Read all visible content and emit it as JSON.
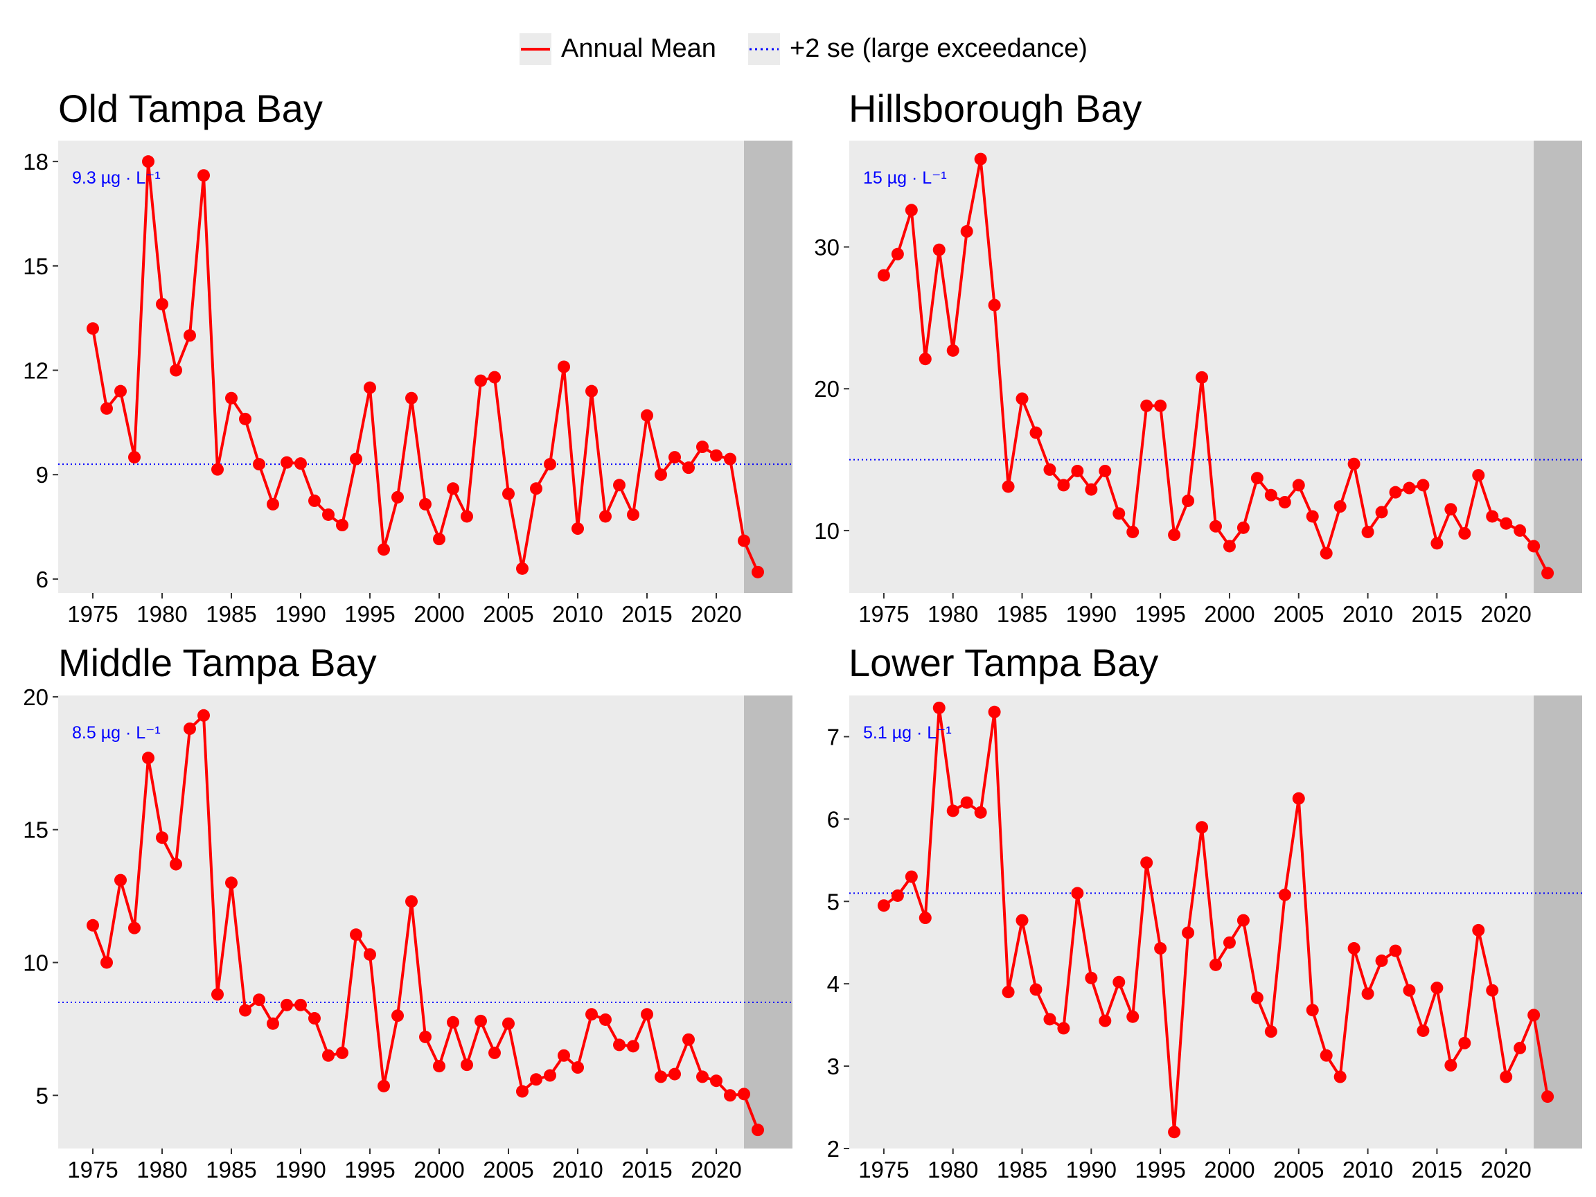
{
  "legend": {
    "items": [
      {
        "label": "Annual Mean",
        "color": "#ff0000",
        "style": "solid-with-point"
      },
      {
        "label": "+2 se (large exceedance)",
        "color": "#0000ff",
        "style": "dotted"
      }
    ],
    "position": "top"
  },
  "chart_data": [
    {
      "type": "line",
      "title": "Old Tampa Bay",
      "xlabel": "",
      "ylabel": "",
      "x_ticks": [
        1975,
        1980,
        1985,
        1990,
        1995,
        2000,
        2005,
        2010,
        2015,
        2020
      ],
      "y_ticks": [
        6,
        9,
        12,
        15,
        18
      ],
      "xlim": [
        1972.5,
        2025.5
      ],
      "ylim": [
        5.6,
        18.6
      ],
      "shaded_region": {
        "from": 2022,
        "to": 2025.5,
        "color": "#bebebe"
      },
      "grid": false,
      "threshold": {
        "value": 9.3,
        "label": "9.3 µg · L⁻¹",
        "color": "#0000ff",
        "style": "dotted"
      },
      "series": [
        {
          "name": "Annual Mean",
          "color": "#ff0000",
          "x": [
            1975,
            1976,
            1977,
            1978,
            1979,
            1980,
            1981,
            1982,
            1983,
            1984,
            1985,
            1986,
            1987,
            1988,
            1989,
            1990,
            1991,
            1992,
            1993,
            1994,
            1995,
            1996,
            1997,
            1998,
            1999,
            2000,
            2001,
            2002,
            2003,
            2004,
            2005,
            2006,
            2007,
            2008,
            2009,
            2010,
            2011,
            2012,
            2013,
            2014,
            2015,
            2016,
            2017,
            2018,
            2019,
            2020,
            2021,
            2022,
            2023
          ],
          "values": [
            13.2,
            10.9,
            11.4,
            9.5,
            18.0,
            13.9,
            12.0,
            13.0,
            17.6,
            9.15,
            11.2,
            10.6,
            9.3,
            8.15,
            9.35,
            9.32,
            8.25,
            7.85,
            7.55,
            9.45,
            11.5,
            6.85,
            8.35,
            11.2,
            8.15,
            7.15,
            8.6,
            7.8,
            11.7,
            11.8,
            8.45,
            6.3,
            8.6,
            9.3,
            12.1,
            7.45,
            11.4,
            7.8,
            8.7,
            7.85,
            10.7,
            9.0,
            9.5,
            9.2,
            9.8,
            9.55,
            9.45,
            7.1,
            6.2
          ]
        }
      ]
    },
    {
      "type": "line",
      "title": "Hillsborough Bay",
      "xlabel": "",
      "ylabel": "",
      "x_ticks": [
        1975,
        1980,
        1985,
        1990,
        1995,
        2000,
        2005,
        2010,
        2015,
        2020
      ],
      "y_ticks": [
        10,
        20,
        30
      ],
      "xlim": [
        1972.5,
        2025.5
      ],
      "ylim": [
        5.6,
        37.5
      ],
      "shaded_region": {
        "from": 2022,
        "to": 2025.5,
        "color": "#bebebe"
      },
      "grid": false,
      "threshold": {
        "value": 15.0,
        "label": "15 µg · L⁻¹",
        "color": "#0000ff",
        "style": "dotted"
      },
      "series": [
        {
          "name": "Annual Mean",
          "color": "#ff0000",
          "x": [
            1975,
            1976,
            1977,
            1978,
            1979,
            1980,
            1981,
            1982,
            1983,
            1984,
            1985,
            1986,
            1987,
            1988,
            1989,
            1990,
            1991,
            1992,
            1993,
            1994,
            1995,
            1996,
            1997,
            1998,
            1999,
            2000,
            2001,
            2002,
            2003,
            2004,
            2005,
            2006,
            2007,
            2008,
            2009,
            2010,
            2011,
            2012,
            2013,
            2014,
            2015,
            2016,
            2017,
            2018,
            2019,
            2020,
            2021,
            2022,
            2023
          ],
          "values": [
            28.0,
            29.5,
            32.6,
            22.1,
            29.8,
            22.7,
            31.1,
            36.2,
            25.9,
            13.1,
            19.3,
            16.9,
            14.3,
            13.2,
            14.2,
            12.9,
            14.2,
            11.2,
            9.9,
            18.8,
            18.8,
            9.7,
            12.1,
            20.8,
            10.3,
            8.9,
            10.2,
            13.7,
            12.5,
            12.0,
            13.2,
            11.0,
            8.4,
            11.7,
            14.7,
            9.9,
            11.3,
            12.7,
            13.0,
            13.2,
            9.1,
            11.5,
            9.8,
            13.9,
            11.0,
            10.5,
            10.0,
            8.9,
            7.0
          ]
        }
      ]
    },
    {
      "type": "line",
      "title": "Middle Tampa Bay",
      "xlabel": "",
      "ylabel": "",
      "x_ticks": [
        1975,
        1980,
        1985,
        1990,
        1995,
        2000,
        2005,
        2010,
        2015,
        2020
      ],
      "y_ticks": [
        5,
        10,
        15,
        20
      ],
      "xlim": [
        1972.5,
        2025.5
      ],
      "ylim": [
        3.0,
        20.05
      ],
      "shaded_region": {
        "from": 2022,
        "to": 2025.5,
        "color": "#bebebe"
      },
      "grid": false,
      "threshold": {
        "value": 8.5,
        "label": "8.5 µg · L⁻¹",
        "color": "#0000ff",
        "style": "dotted"
      },
      "series": [
        {
          "name": "Annual Mean",
          "color": "#ff0000",
          "x": [
            1975,
            1976,
            1977,
            1978,
            1979,
            1980,
            1981,
            1982,
            1983,
            1984,
            1985,
            1986,
            1987,
            1988,
            1989,
            1990,
            1991,
            1992,
            1993,
            1994,
            1995,
            1996,
            1997,
            1998,
            1999,
            2000,
            2001,
            2002,
            2003,
            2004,
            2005,
            2006,
            2007,
            2008,
            2009,
            2010,
            2011,
            2012,
            2013,
            2014,
            2015,
            2016,
            2017,
            2018,
            2019,
            2020,
            2021,
            2022,
            2023
          ],
          "values": [
            11.4,
            10.0,
            13.1,
            11.3,
            17.7,
            14.7,
            13.7,
            18.8,
            19.3,
            8.8,
            13.0,
            8.2,
            8.6,
            7.7,
            8.4,
            8.4,
            7.9,
            6.5,
            6.6,
            11.05,
            10.3,
            5.35,
            8.0,
            12.3,
            7.2,
            6.1,
            7.75,
            6.15,
            7.8,
            6.6,
            7.7,
            5.15,
            5.6,
            5.75,
            6.5,
            6.05,
            8.05,
            7.85,
            6.9,
            6.85,
            8.05,
            5.7,
            5.8,
            7.1,
            5.7,
            5.55,
            5.0,
            5.05,
            3.7
          ]
        }
      ]
    },
    {
      "type": "line",
      "title": "Lower Tampa Bay",
      "xlabel": "",
      "ylabel": "",
      "x_ticks": [
        1975,
        1980,
        1985,
        1990,
        1995,
        2000,
        2005,
        2010,
        2015,
        2020
      ],
      "y_ticks": [
        2,
        3,
        4,
        5,
        6,
        7
      ],
      "xlim": [
        1972.5,
        2025.5
      ],
      "ylim": [
        2.0,
        7.5
      ],
      "shaded_region": {
        "from": 2022,
        "to": 2025.5,
        "color": "#bebebe"
      },
      "grid": false,
      "threshold": {
        "value": 5.1,
        "label": "5.1 µg · L⁻¹",
        "color": "#0000ff",
        "style": "dotted"
      },
      "series": [
        {
          "name": "Annual Mean",
          "color": "#ff0000",
          "x": [
            1975,
            1976,
            1977,
            1978,
            1979,
            1980,
            1981,
            1982,
            1983,
            1984,
            1985,
            1986,
            1987,
            1988,
            1989,
            1990,
            1991,
            1992,
            1993,
            1994,
            1995,
            1996,
            1997,
            1998,
            1999,
            2000,
            2001,
            2002,
            2003,
            2004,
            2005,
            2006,
            2007,
            2008,
            2009,
            2010,
            2011,
            2012,
            2013,
            2014,
            2015,
            2016,
            2017,
            2018,
            2019,
            2020,
            2021,
            2022,
            2023
          ],
          "values": [
            4.95,
            5.07,
            5.3,
            4.8,
            7.35,
            6.1,
            6.2,
            6.08,
            7.3,
            3.9,
            4.77,
            3.93,
            3.57,
            3.46,
            5.1,
            4.07,
            3.55,
            4.02,
            3.6,
            5.47,
            4.43,
            2.2,
            4.62,
            5.9,
            4.23,
            4.5,
            4.77,
            3.83,
            3.42,
            5.08,
            6.25,
            3.68,
            3.13,
            2.87,
            4.43,
            3.88,
            4.28,
            4.4,
            3.92,
            3.43,
            3.95,
            3.01,
            3.28,
            4.65,
            3.92,
            2.87,
            3.22,
            3.62,
            2.63
          ]
        }
      ]
    }
  ]
}
